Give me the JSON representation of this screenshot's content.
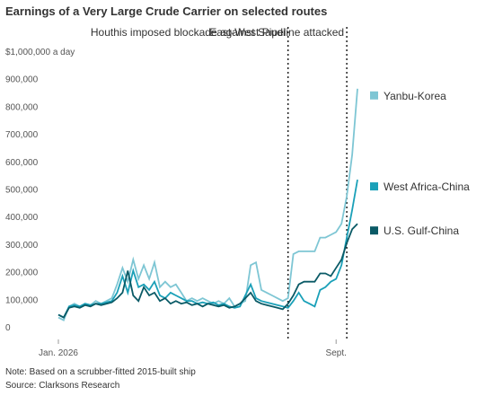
{
  "chart_data": {
    "type": "line",
    "title": "Earnings of a Very Large Crude Carrier on selected routes",
    "note": "Note: Based on a scrubber-fitted 2015-built ship",
    "source": "Source: Clarksons Research",
    "categories": [
      "Jan. 2026",
      null,
      null,
      null,
      null,
      null,
      null,
      null,
      null,
      null,
      null,
      null,
      null,
      null,
      null,
      null,
      null,
      null,
      null,
      null,
      null,
      null,
      null,
      null,
      null,
      null,
      null,
      null,
      null,
      null,
      null,
      null,
      null,
      null,
      null,
      null,
      null,
      null,
      null,
      null,
      null,
      null,
      null,
      null,
      null,
      null,
      null,
      null,
      null,
      null,
      null,
      null,
      "Sept.",
      null,
      null,
      null,
      null
    ],
    "series": [
      {
        "name": "Yanbu-Korea",
        "color": "#7ec6d4",
        "values": [
          60000,
          50000,
          100000,
          110000,
          100000,
          110000,
          105000,
          120000,
          110000,
          120000,
          130000,
          180000,
          240000,
          190000,
          270000,
          200000,
          250000,
          200000,
          260000,
          170000,
          190000,
          170000,
          180000,
          150000,
          120000,
          130000,
          120000,
          130000,
          120000,
          110000,
          120000,
          110000,
          130000,
          100000,
          110000,
          120000,
          250000,
          260000,
          160000,
          150000,
          140000,
          130000,
          120000,
          130000,
          290000,
          300000,
          300000,
          300000,
          300000,
          350000,
          350000,
          360000,
          370000,
          400000,
          500000,
          650000,
          890000
        ]
      },
      {
        "name": "West Africa-China",
        "color": "#1aa0b8",
        "values": [
          70000,
          60000,
          100000,
          105000,
          100000,
          110000,
          105000,
          110000,
          110000,
          115000,
          120000,
          150000,
          210000,
          150000,
          230000,
          170000,
          180000,
          160000,
          190000,
          140000,
          130000,
          150000,
          140000,
          130000,
          120000,
          120000,
          110000,
          115000,
          110000,
          115000,
          105000,
          110000,
          100000,
          95000,
          100000,
          140000,
          180000,
          130000,
          120000,
          115000,
          110000,
          105000,
          100000,
          95000,
          120000,
          150000,
          120000,
          110000,
          100000,
          160000,
          170000,
          190000,
          200000,
          250000,
          350000,
          450000,
          560000
        ]
      },
      {
        "name": "U.S. Gulf-China",
        "color": "#0a5a66",
        "values": [
          70000,
          60000,
          95000,
          100000,
          95000,
          105000,
          100000,
          110000,
          105000,
          110000,
          115000,
          130000,
          150000,
          230000,
          140000,
          120000,
          170000,
          140000,
          150000,
          120000,
          130000,
          110000,
          120000,
          110000,
          115000,
          105000,
          110000,
          100000,
          110000,
          105000,
          100000,
          105000,
          95000,
          100000,
          110000,
          130000,
          150000,
          120000,
          110000,
          105000,
          100000,
          95000,
          90000,
          110000,
          140000,
          180000,
          190000,
          190000,
          190000,
          220000,
          220000,
          210000,
          240000,
          270000,
          330000,
          380000,
          400000
        ]
      }
    ],
    "ylim": [
      0,
      1000000
    ],
    "yticks": [
      0,
      {
        "value": 100000,
        "label": "100,000"
      },
      {
        "value": 200000,
        "label": "200,000"
      },
      {
        "value": 300000,
        "label": "300,000"
      },
      {
        "value": 400000,
        "label": "400,000"
      },
      {
        "value": 500000,
        "label": "500,000"
      },
      {
        "value": 600000,
        "label": "600,000"
      },
      {
        "value": 700000,
        "label": "700,000"
      },
      {
        "value": 800000,
        "label": "800,000"
      },
      {
        "value": 900000,
        "label": "900,000"
      },
      {
        "value": 1000000,
        "label": "$1,000,000 a day"
      }
    ],
    "annotations": [
      {
        "text": "Houthis imposed blockade against Saudi",
        "x_index": 43
      },
      {
        "text": "East-West Pipeline attacked",
        "x_index": 54
      }
    ],
    "legend": "right"
  }
}
